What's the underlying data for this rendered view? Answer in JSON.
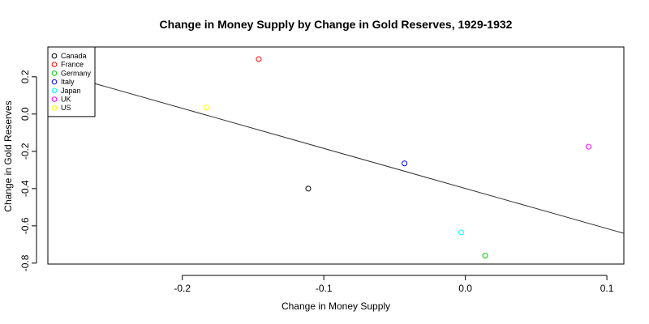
{
  "chart_data": {
    "type": "scatter",
    "title": "Change in Money Supply by Change in Gold Reserves, 1929-1932",
    "xlabel": "Change in Money Supply",
    "ylabel": "Change in Gold Reserves",
    "xlim": [
      -0.295,
      0.112
    ],
    "ylim": [
      -0.805,
      0.36
    ],
    "xticks": [
      -0.2,
      -0.1,
      0.0,
      0.1
    ],
    "xtick_labels": [
      "-0.2",
      "-0.1",
      "0.0",
      "0.1"
    ],
    "yticks": [
      -0.8,
      -0.6,
      -0.4,
      -0.2,
      0.0,
      0.2
    ],
    "ytick_labels": [
      "-0.8",
      "-0.6",
      "-0.4",
      "-0.2",
      "0.0",
      "0.2"
    ],
    "grid": false,
    "legend_position": "top-left",
    "series": [
      {
        "name": "Canada",
        "color": "#000000",
        "x": -0.111,
        "y": -0.4
      },
      {
        "name": "France",
        "color": "#ff0000",
        "x": -0.146,
        "y": 0.295
      },
      {
        "name": "Germany",
        "color": "#00cd00",
        "x": 0.014,
        "y": -0.76
      },
      {
        "name": "Italy",
        "color": "#0000ff",
        "x": -0.043,
        "y": -0.265
      },
      {
        "name": "Japan",
        "color": "#00ffff",
        "x": -0.003,
        "y": -0.635
      },
      {
        "name": "UK",
        "color": "#ff00ff",
        "x": 0.087,
        "y": -0.175
      },
      {
        "name": "US",
        "color": "#ffff00",
        "x": -0.183,
        "y": 0.035
      }
    ],
    "regression_line": {
      "x": [
        -0.295,
        0.112
      ],
      "y": [
        0.235,
        -0.64
      ],
      "color": "#333333"
    }
  }
}
